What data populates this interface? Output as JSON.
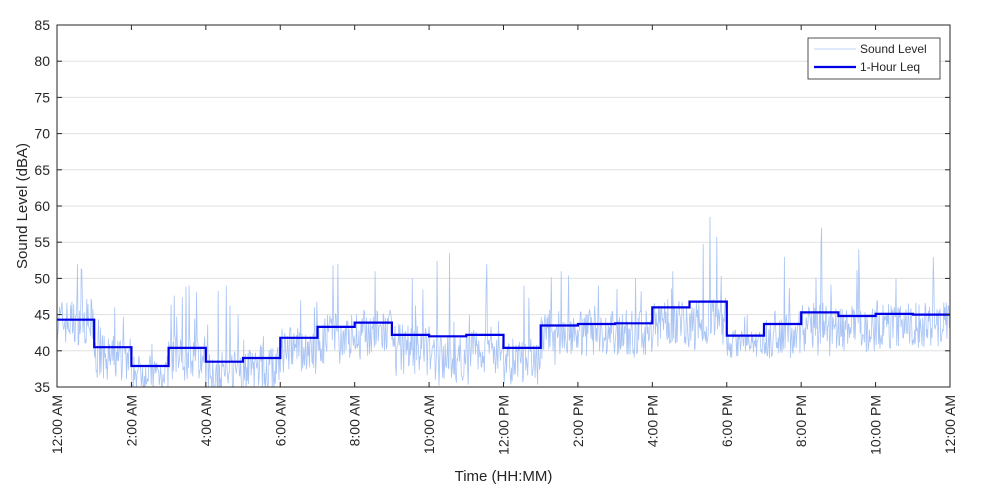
{
  "chart_data": {
    "type": "line",
    "title": "",
    "xlabel": "Time (HH:MM)",
    "ylabel": "Sound Level (dBA)",
    "xlim": [
      0,
      24
    ],
    "ylim": [
      35,
      85
    ],
    "yticks": [
      35,
      40,
      45,
      50,
      55,
      60,
      65,
      70,
      75,
      80,
      85
    ],
    "xticks": [
      0,
      2,
      4,
      6,
      8,
      10,
      12,
      14,
      16,
      18,
      20,
      22,
      24
    ],
    "xtick_labels": [
      "12:00 AM",
      "2:00 AM",
      "4:00 AM",
      "6:00 AM",
      "8:00 AM",
      "10:00 AM",
      "12:00 PM",
      "2:00 PM",
      "4:00 PM",
      "6:00 PM",
      "8:00 PM",
      "10:00 PM",
      "12:00 AM"
    ],
    "grid": {
      "y": true,
      "x": false
    },
    "legend": {
      "placement": "top-right",
      "entries": [
        "Sound Level",
        "1-Hour Leq"
      ]
    },
    "series": [
      {
        "name": "Sound Level",
        "style": "thin-line",
        "color": "#a9c4f5",
        "hourly_profile": [
          {
            "hour": 0,
            "min": 37,
            "mean": 44,
            "max": 52
          },
          {
            "hour": 1,
            "min": 36,
            "mean": 39,
            "max": 46
          },
          {
            "hour": 2,
            "min": 35.5,
            "mean": 37,
            "max": 41
          },
          {
            "hour": 3,
            "min": 36,
            "mean": 39,
            "max": 49
          },
          {
            "hour": 4,
            "min": 35,
            "mean": 37,
            "max": 49
          },
          {
            "hour": 5,
            "min": 35,
            "mean": 37.5,
            "max": 42
          },
          {
            "hour": 6,
            "min": 37,
            "mean": 40,
            "max": 47
          },
          {
            "hour": 7,
            "min": 38,
            "mean": 42,
            "max": 52
          },
          {
            "hour": 8,
            "min": 38,
            "mean": 42.5,
            "max": 51
          },
          {
            "hour": 9,
            "min": 36,
            "mean": 40.5,
            "max": 50
          },
          {
            "hour": 10,
            "min": 35,
            "mean": 39,
            "max": 53.5
          },
          {
            "hour": 11,
            "min": 35,
            "mean": 40,
            "max": 52
          },
          {
            "hour": 12,
            "min": 35,
            "mean": 38.5,
            "max": 49
          },
          {
            "hour": 13,
            "min": 38,
            "mean": 42.5,
            "max": 51
          },
          {
            "hour": 14,
            "min": 39,
            "mean": 42.5,
            "max": 49
          },
          {
            "hour": 15,
            "min": 39,
            "mean": 42.5,
            "max": 50
          },
          {
            "hour": 16,
            "min": 40,
            "mean": 44,
            "max": 51
          },
          {
            "hour": 17,
            "min": 40,
            "mean": 44.5,
            "max": 58.5
          },
          {
            "hour": 18,
            "min": 40,
            "mean": 41,
            "max": 45
          },
          {
            "hour": 19,
            "min": 39,
            "mean": 42,
            "max": 53
          },
          {
            "hour": 20,
            "min": 39,
            "mean": 43.5,
            "max": 57
          },
          {
            "hour": 21,
            "min": 40,
            "mean": 43,
            "max": 54
          },
          {
            "hour": 22,
            "min": 40,
            "mean": 43.5,
            "max": 50
          },
          {
            "hour": 23,
            "min": 40,
            "mean": 43.5,
            "max": 53
          }
        ]
      },
      {
        "name": "1-Hour Leq",
        "style": "step",
        "color": "#0000e6",
        "x": [
          0,
          1,
          2,
          3,
          4,
          5,
          6,
          7,
          8,
          9,
          10,
          11,
          12,
          13,
          14,
          15,
          16,
          17,
          18,
          19,
          20,
          21,
          22,
          23
        ],
        "values": [
          44.3,
          40.5,
          37.9,
          40.4,
          38.5,
          39.0,
          41.8,
          43.3,
          43.9,
          42.2,
          42.0,
          42.2,
          40.4,
          43.5,
          43.7,
          43.8,
          46.0,
          46.8,
          42.1,
          43.7,
          45.3,
          44.8,
          45.1,
          45.0
        ]
      }
    ]
  }
}
